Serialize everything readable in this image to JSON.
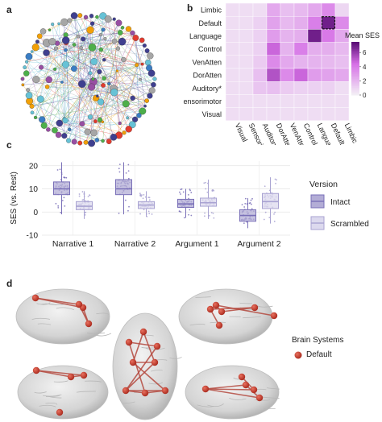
{
  "panels": {
    "a": {
      "letter": "a"
    },
    "b": {
      "letter": "b"
    },
    "c": {
      "letter": "c"
    },
    "d": {
      "letter": "d"
    }
  },
  "network": {
    "node_colors": [
      "#3a7dc4",
      "#f2a007",
      "#e23b2e",
      "#4daf4a",
      "#984ea3",
      "#3f3f8f",
      "#a6a6a6",
      "#66c2d6"
    ]
  },
  "chart_data": [
    {
      "type": "heatmap",
      "title": "",
      "rows": [
        "Limbic",
        "Default",
        "Language",
        "Control",
        "VenAtten",
        "DorAtten",
        "Auditory*",
        "Sensorimotor",
        "Visual"
      ],
      "columns": [
        "Visual",
        "Sensorimotor",
        "Auditory*",
        "DorAtten",
        "VenAtten",
        "Control",
        "Language",
        "Default",
        "Limbic"
      ],
      "values": [
        [
          0.8,
          0.8,
          0.8,
          2.6,
          1.8,
          2.0,
          2.6,
          3.6,
          1.0
        ],
        [
          0.8,
          0.8,
          1.2,
          2.8,
          2.0,
          2.4,
          4.0,
          7.0,
          3.6
        ],
        [
          0.8,
          0.8,
          1.2,
          3.0,
          2.2,
          2.4,
          7.0,
          4.2,
          2.6
        ],
        [
          0.8,
          0.8,
          1.2,
          4.8,
          2.2,
          4.0,
          2.4,
          2.4,
          2.0
        ],
        [
          0.8,
          0.8,
          1.4,
          3.6,
          2.6,
          2.2,
          2.2,
          2.0,
          1.8
        ],
        [
          0.8,
          0.8,
          1.8,
          5.4,
          3.6,
          4.8,
          3.0,
          2.8,
          2.6
        ],
        [
          0.8,
          0.8,
          1.6,
          1.8,
          1.4,
          1.2,
          1.2,
          1.2,
          0.8
        ],
        [
          0.8,
          0.8,
          0.8,
          0.8,
          0.8,
          0.8,
          0.8,
          0.8,
          0.8
        ],
        [
          0.8,
          0.8,
          0.8,
          0.8,
          0.8,
          0.8,
          0.8,
          0.8,
          0.8
        ]
      ],
      "highlighted_cell": {
        "row": "Default",
        "column": "Default"
      },
      "colorbar": {
        "label": "Mean SES",
        "ticks": [
          0,
          2,
          4,
          6
        ],
        "range": [
          0,
          7.5
        ]
      },
      "low_color": "#f4f4f6",
      "high_color": "#5c0f78"
    },
    {
      "type": "box",
      "title": "",
      "categories": [
        "Narrative 1",
        "Narrative 2",
        "Argument 1",
        "Argument 2"
      ],
      "ylabel": "SES (vs. Rest)",
      "xlabel": "",
      "ylim": [
        -10,
        22
      ],
      "yticks": [
        -10,
        0,
        10,
        20
      ],
      "grid": true,
      "legend": {
        "title": "Version",
        "placement": "right"
      },
      "series": [
        {
          "name": "Intact",
          "color": "#7a70b8",
          "fill": "#b3add6",
          "boxes": [
            {
              "whisker_low": -1,
              "q1": 7.5,
              "median": 10,
              "q3": 13,
              "whisker_high": 21.5
            },
            {
              "whisker_low": -1,
              "q1": 7.5,
              "median": 10,
              "q3": 14,
              "whisker_high": 21.5
            },
            {
              "whisker_low": -2.5,
              "q1": 2,
              "median": 3.5,
              "q3": 5.5,
              "whisker_high": 10
            },
            {
              "whisker_low": -7,
              "q1": -4,
              "median": -1.5,
              "q3": 1,
              "whisker_high": 6
            }
          ]
        },
        {
          "name": "Scrambled",
          "color": "#a9a3d2",
          "fill": "#dcd9ee",
          "boxes": [
            {
              "whisker_low": -3,
              "q1": 1,
              "median": 2.5,
              "q3": 4.5,
              "whisker_high": 9
            },
            {
              "whisker_low": -2,
              "q1": 1.5,
              "median": 3,
              "q3": 4.5,
              "whisker_high": 9
            },
            {
              "whisker_low": -3,
              "q1": 2.5,
              "median": 4,
              "q3": 6,
              "whisker_high": 14
            },
            {
              "whisker_low": -5,
              "q1": 1.5,
              "median": 4.5,
              "q3": 8,
              "whisker_high": 15
            }
          ]
        }
      ]
    }
  ],
  "brain_legend": {
    "title": "Brain Systems",
    "item": "Default",
    "color": "#c0392b"
  }
}
